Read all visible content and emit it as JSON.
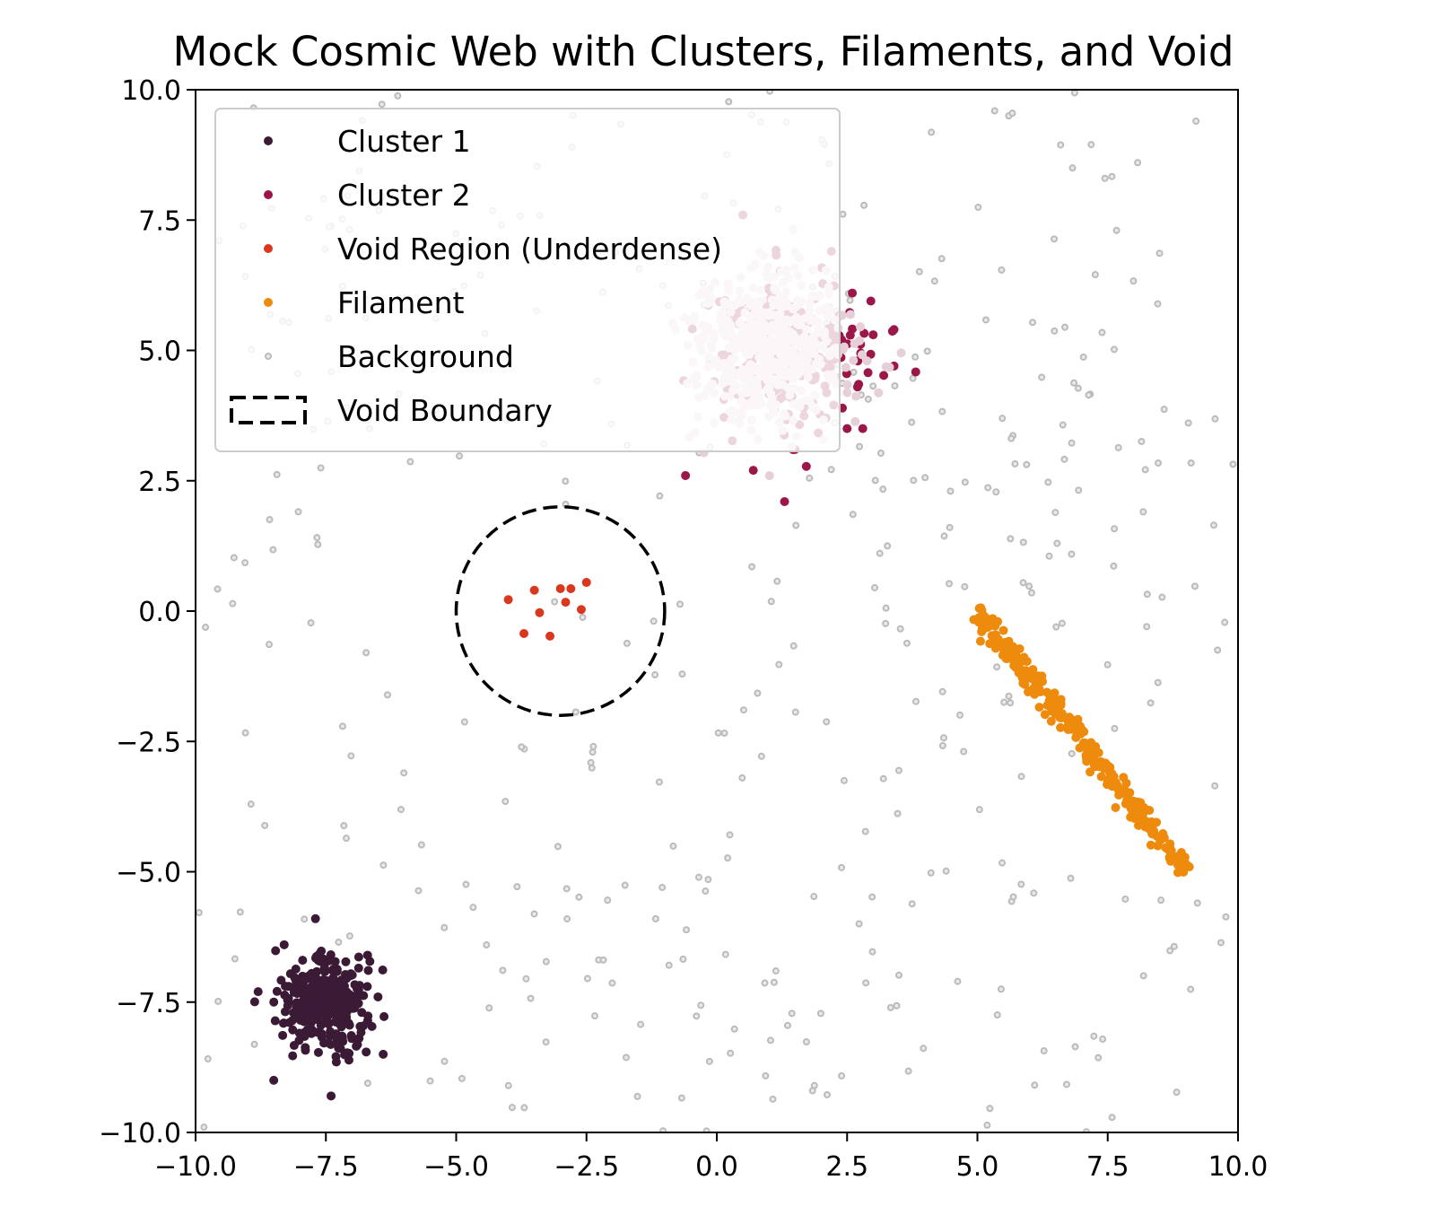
{
  "chart_data": {
    "type": "scatter",
    "title": "Mock Cosmic Web with Clusters, Filaments, and Void",
    "xlabel": "",
    "ylabel": "",
    "xlim": [
      -10,
      10
    ],
    "ylim": [
      -10,
      10
    ],
    "xticks": [
      -10,
      -7.5,
      -5,
      -2.5,
      0,
      2.5,
      5,
      7.5,
      10
    ],
    "yticks": [
      -10,
      -7.5,
      -5,
      -2.5,
      0,
      2.5,
      5,
      7.5,
      10
    ],
    "xtick_labels": [
      "−10.0",
      "−7.5",
      "−5.0",
      "−2.5",
      "0.0",
      "2.5",
      "5.0",
      "7.5",
      "10.0"
    ],
    "ytick_labels": [
      "−10.0",
      "−7.5",
      "−5.0",
      "−2.5",
      "0.0",
      "2.5",
      "5.0",
      "7.5",
      "10.0"
    ],
    "grid": false,
    "legend_position": "top-left",
    "legend": [
      {
        "label": "Cluster 1",
        "color": "#3b1a36",
        "kind": "marker"
      },
      {
        "label": "Cluster 2",
        "color": "#9c1749",
        "kind": "marker"
      },
      {
        "label": "Void Region (Underdense)",
        "color": "#d9381e",
        "kind": "marker"
      },
      {
        "label": "Filament",
        "color": "#ee8a0c",
        "kind": "marker"
      },
      {
        "label": "Background",
        "color": "#bbbbbb",
        "kind": "hollow"
      },
      {
        "label": "Void Boundary",
        "color": "#000000",
        "kind": "dashed-box"
      }
    ],
    "series": [
      {
        "name": "Cluster 1",
        "color": "#3b1a36",
        "center": [
          -7.5,
          -7.5
        ],
        "spread": 0.45,
        "count": 300,
        "points": [
          [
            -7.7,
            -5.9
          ],
          [
            -8.5,
            -9.0
          ],
          [
            -7.4,
            -9.3
          ],
          [
            -8.8,
            -7.3
          ],
          [
            -6.5,
            -7.4
          ],
          [
            -6.4,
            -8.5
          ],
          [
            -8.3,
            -6.4
          ],
          [
            -6.7,
            -6.6
          ]
        ]
      },
      {
        "name": "Cluster 2",
        "color": "#9c1749",
        "center": [
          1.0,
          5.0
        ],
        "spread": 0.75,
        "count": 500,
        "points": [
          [
            0.5,
            7.6
          ],
          [
            2.2,
            6.9
          ],
          [
            3.4,
            5.4
          ],
          [
            3.4,
            4.7
          ],
          [
            3.0,
            5.3
          ],
          [
            2.8,
            3.5
          ],
          [
            1.3,
            2.1
          ],
          [
            -0.6,
            2.6
          ],
          [
            0.7,
            2.7
          ],
          [
            1.5,
            3.1
          ],
          [
            2.6,
            6.1
          ],
          [
            2.5,
            3.5
          ],
          [
            2.7,
            4.3
          ]
        ]
      },
      {
        "name": "Void Region (Underdense)",
        "color": "#d9381e",
        "points": [
          [
            -4.0,
            0.22
          ],
          [
            -3.5,
            0.4
          ],
          [
            -3.0,
            0.43
          ],
          [
            -2.8,
            0.43
          ],
          [
            -2.5,
            0.55
          ],
          [
            -3.4,
            -0.03
          ],
          [
            -2.9,
            0.17
          ],
          [
            -2.6,
            0.03
          ],
          [
            -3.7,
            -0.43
          ],
          [
            -3.2,
            -0.48
          ]
        ]
      },
      {
        "name": "Filament",
        "color": "#ee8a0c",
        "start": [
          5.0,
          0.0
        ],
        "end": [
          9.0,
          -5.0
        ],
        "count": 300
      },
      {
        "name": "Background",
        "color": "#bbbbbb",
        "count": 420
      }
    ],
    "void_boundary": {
      "center": [
        -3,
        0
      ],
      "radius": 2
    }
  }
}
